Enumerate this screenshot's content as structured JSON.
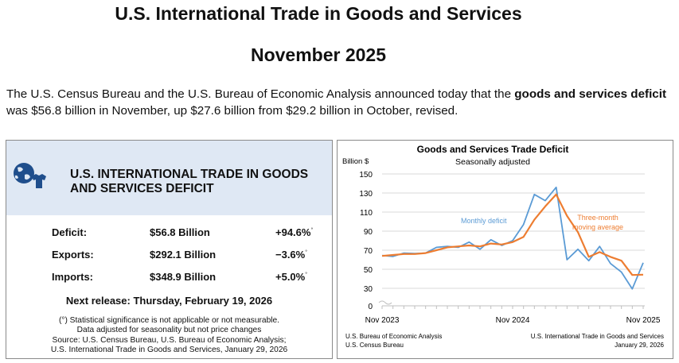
{
  "header": {
    "title": "U.S. International Trade in Goods and Services",
    "subtitle": "November 2025"
  },
  "intro": {
    "part1": "The U.S. Census Bureau and the U.S. Bureau of Economic Analysis announced today that the ",
    "bold": "goods and services deficit",
    "part2": " was $56.8 billion in November, up $27.6 billion from $29.2 billion in October, revised."
  },
  "summary": {
    "title": "U.S. INTERNATIONAL TRADE IN GOODS AND SERVICES DEFICIT",
    "rows": [
      {
        "label": "Deficit:",
        "value": "$56.8 Billion",
        "change": "+94.6%",
        "mark": "°"
      },
      {
        "label": "Exports:",
        "value": "$292.1 Billion",
        "change": "−3.6%",
        "mark": "°"
      },
      {
        "label": "Imports:",
        "value": "$348.9 Billion",
        "change": "+5.0%",
        "mark": "°"
      }
    ],
    "next_release": "Next release: Thursday, February 19, 2026",
    "notes": [
      "(°) Statistical significance is not applicable or not measurable.",
      "Data adjusted for seasonality but not price changes",
      "Source: U.S. Census Bureau, U.S. Bureau of Economic Analysis;",
      "U.S. International Trade in Goods and Services, January 29, 2026"
    ],
    "colors": {
      "header_bg": "#dfe8f4",
      "globe": "#1f4e8c"
    }
  },
  "chart_data": {
    "type": "line",
    "title": "Goods and Services Trade Deficit",
    "subtitle": "Seasonally adjusted",
    "ylabel": "Billion $",
    "ylim": [
      0,
      150
    ],
    "yticks": [
      0,
      30,
      50,
      70,
      90,
      110,
      130,
      150
    ],
    "x_labels": [
      "Nov 2023",
      "Nov 2024",
      "Nov 2025"
    ],
    "x_label_index": [
      0,
      12,
      24
    ],
    "series": [
      {
        "name": "Monthly deficit",
        "color": "#5b9bd5",
        "values": [
          64.5,
          63.5,
          67,
          66.5,
          67,
          73,
          74,
          73,
          78.5,
          71,
          81,
          75,
          80,
          97,
          128.5,
          122,
          136,
          60,
          71,
          59,
          74,
          56,
          47,
          29,
          56.8
        ]
      },
      {
        "name": "Three-month moving average",
        "color": "#ed7d31",
        "values": [
          64,
          65,
          66,
          66,
          67,
          70,
          73,
          74,
          75,
          74,
          77,
          76,
          78.5,
          84,
          102,
          116,
          128.5,
          106,
          89,
          63,
          68,
          63,
          59,
          44,
          44.3
        ]
      }
    ],
    "annotations": {
      "monthly": "Monthly deficit",
      "moving_line1": "Three-month",
      "moving_line2": "moving average"
    },
    "source_left": [
      "U.S. Bureau of Economic Analysis",
      "U.S. Census Bureau"
    ],
    "source_right": [
      "U.S. International Trade in Goods and Services",
      "January 29, 2026"
    ]
  }
}
